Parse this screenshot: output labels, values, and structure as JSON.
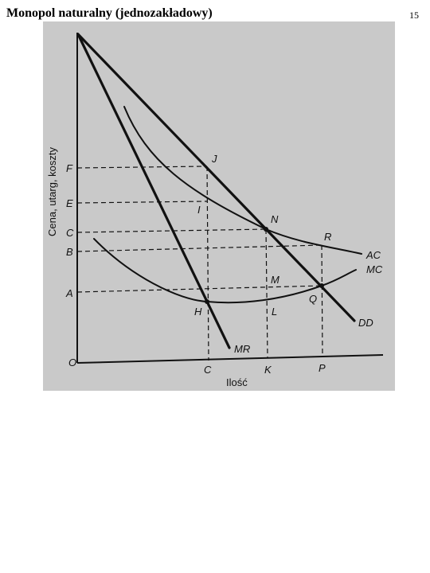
{
  "slide": {
    "title": "Monopol naturalny (jednozakładowy)",
    "page_number": "15"
  },
  "diagram": {
    "y_axis_label": "Cena, utarg, koszty",
    "x_axis_label": "Ilość",
    "origin_label": "O",
    "y_labels": {
      "F": "F",
      "E": "E",
      "C": "C",
      "B": "B",
      "A": "A"
    },
    "x_labels": {
      "C": "C",
      "K": "K",
      "P": "P"
    },
    "point_labels": {
      "J": "J",
      "I": "I",
      "N": "N",
      "R": "R",
      "M": "M",
      "H": "H",
      "L": "L",
      "Q": "Q"
    },
    "curve_labels": {
      "AC": "AC",
      "MC": "MC",
      "DD": "DD",
      "MR": "MR"
    }
  }
}
